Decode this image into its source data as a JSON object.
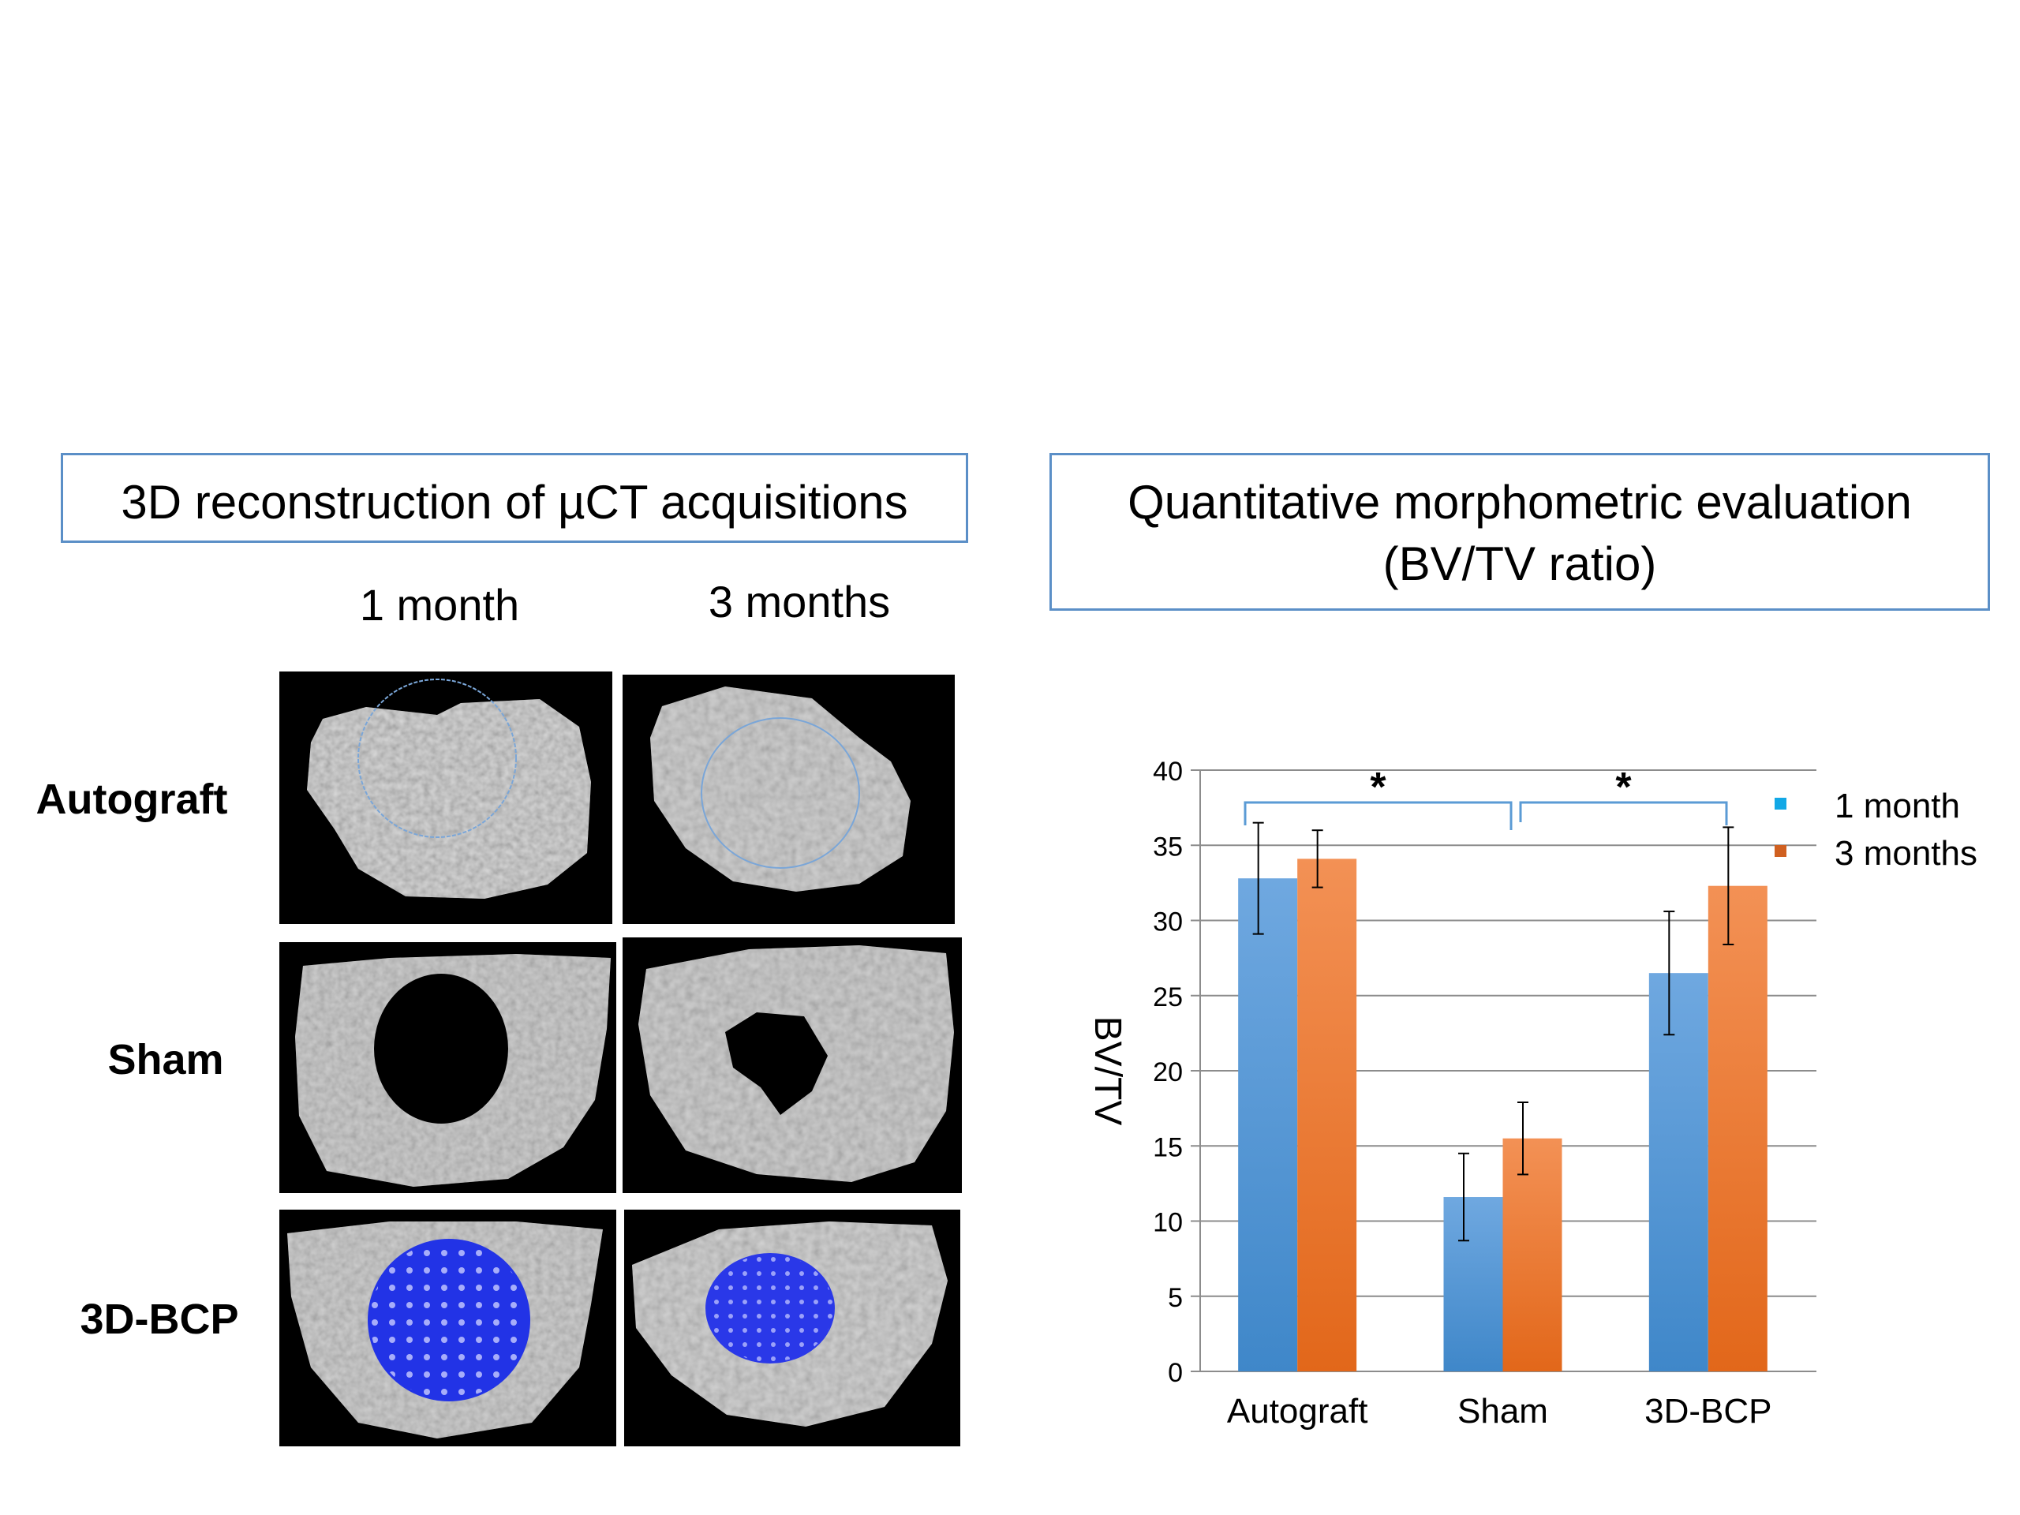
{
  "left_panel": {
    "title": "3D reconstruction of µCT acquisitions",
    "columns": [
      "1 month",
      "3 months"
    ],
    "rows": [
      "Autograft",
      "Sham",
      "3D-BCP"
    ],
    "scan_colors": {
      "background": "#000000",
      "bone": "#bdbdbd",
      "roi_outline": "#7aa6d8",
      "scaffold": "#1f2fe0"
    }
  },
  "right_panel": {
    "title_line1": "Quantitative morphometric evaluation",
    "title_line2": "(BV/TV ratio)"
  },
  "chart_data": {
    "type": "bar",
    "title": "",
    "xlabel": "",
    "ylabel": "BV/TV",
    "ylim": [
      0,
      40
    ],
    "yticks": [
      0,
      5,
      10,
      15,
      20,
      25,
      30,
      35,
      40
    ],
    "grid": true,
    "legend_position": "top-right",
    "categories": [
      "Autograft",
      "Sham",
      "3D-BCP"
    ],
    "series": [
      {
        "name": "1 month",
        "color": "#4f93d6",
        "legend_color": "#12a8e6",
        "values": [
          32.8,
          11.6,
          26.5
        ],
        "errors": [
          3.7,
          2.9,
          4.1
        ]
      },
      {
        "name": "3 months",
        "color": "#ef7a2e",
        "legend_color": "#d06020",
        "values": [
          34.1,
          15.5,
          32.3
        ],
        "errors": [
          1.9,
          2.4,
          3.9
        ]
      }
    ],
    "annotations": [
      {
        "text": "*",
        "from": "Autograft",
        "to": "Sham"
      },
      {
        "text": "*",
        "from": "Sham",
        "to": "3D-BCP"
      }
    ],
    "bracket_color": "#5b9bd5"
  }
}
